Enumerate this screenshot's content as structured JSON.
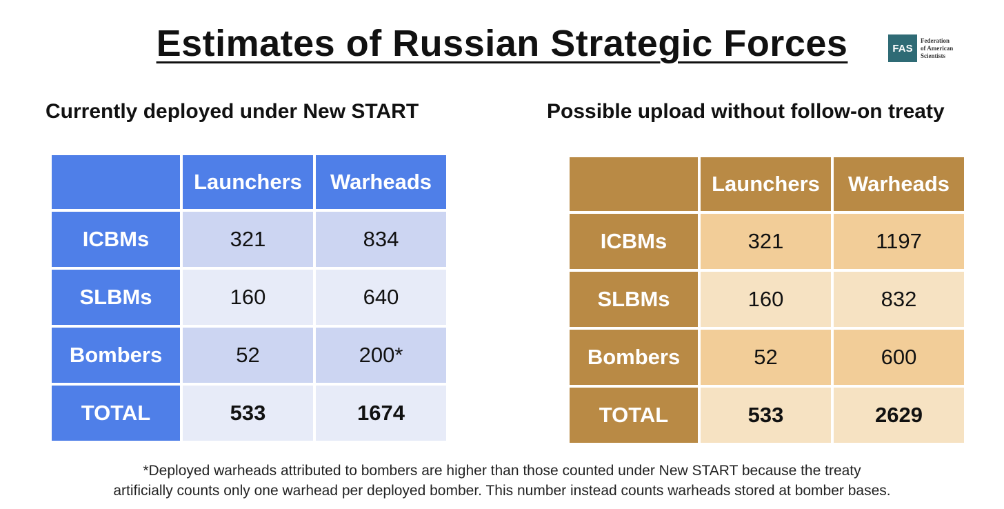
{
  "title": "Estimates of Russian Strategic Forces",
  "logo": {
    "abbr": "FAS",
    "line1": "Federation",
    "line2": "of American",
    "line3": "Scientists"
  },
  "chart_data": [
    {
      "type": "table",
      "title": "Currently deployed under New START",
      "columns": [
        "",
        "Launchers",
        "Warheads"
      ],
      "rows": [
        {
          "label": "ICBMs",
          "launchers": "321",
          "warheads": "834"
        },
        {
          "label": "SLBMs",
          "launchers": "160",
          "warheads": "640"
        },
        {
          "label": "Bombers",
          "launchers": "52",
          "warheads": "200*"
        },
        {
          "label": "TOTAL",
          "launchers": "533",
          "warheads": "1674"
        }
      ],
      "colors": {
        "header": "#4f7fe8",
        "row_dark": "#ccd5f2",
        "row_light": "#e7ebf8"
      }
    },
    {
      "type": "table",
      "title": "Possible upload without follow-on treaty",
      "columns": [
        "",
        "Launchers",
        "Warheads"
      ],
      "rows": [
        {
          "label": "ICBMs",
          "launchers": "321",
          "warheads": "1197"
        },
        {
          "label": "SLBMs",
          "launchers": "160",
          "warheads": "832"
        },
        {
          "label": "Bombers",
          "launchers": "52",
          "warheads": "600"
        },
        {
          "label": "TOTAL",
          "launchers": "533",
          "warheads": "2629"
        }
      ],
      "colors": {
        "header": "#b98a45",
        "row_dark": "#f2cd98",
        "row_light": "#f6e2c2"
      }
    }
  ],
  "footnote": {
    "line1": "*Deployed warheads attributed to bombers are higher than those counted under New START because the treaty",
    "line2": "artificially counts only one warhead per deployed bomber. This number instead counts warheads stored at bomber bases."
  }
}
